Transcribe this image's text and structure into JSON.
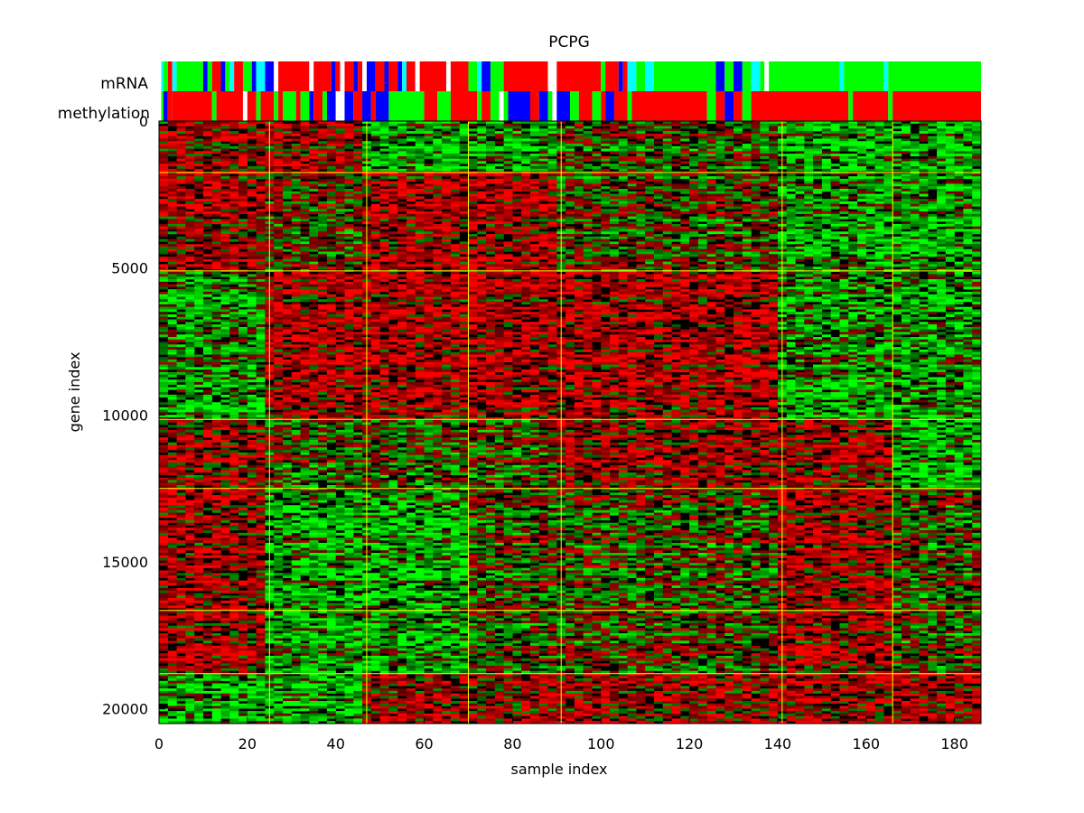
{
  "chart_data": {
    "type": "heatmap",
    "title": "PCPG",
    "xlabel": "sample index",
    "ylabel": "gene index",
    "xlim": [
      0,
      186
    ],
    "ylim": [
      20500,
      0
    ],
    "x_ticks": [
      0,
      20,
      40,
      60,
      80,
      100,
      120,
      140,
      160,
      180
    ],
    "y_ticks": [
      0,
      5000,
      10000,
      15000,
      20000
    ],
    "colormap": [
      "#00ff00",
      "#000000",
      "#ff0000"
    ],
    "grid_color": "#ffff00",
    "sample_cluster_boundaries": [
      25,
      47,
      70,
      91,
      141,
      166
    ],
    "gene_cluster_boundaries": [
      1750,
      5100,
      10150,
      12500,
      16650,
      18800
    ],
    "block_pattern": [
      [
        1,
        1,
        -1,
        -1,
        0,
        -1,
        -1
      ],
      [
        1,
        0,
        1,
        1,
        0,
        -1,
        -1
      ],
      [
        -1,
        1,
        1,
        1,
        1,
        -1,
        -1
      ],
      [
        1,
        0,
        0,
        0,
        1,
        1,
        -1
      ],
      [
        1,
        -1,
        -1,
        0,
        0,
        1,
        0
      ],
      [
        1,
        -1,
        -1,
        0,
        0,
        1,
        0
      ],
      [
        -1,
        -1,
        1,
        1,
        1,
        1,
        1
      ]
    ],
    "annotation_tracks": [
      {
        "name": "mRNA",
        "segments": [
          [
            0,
            0.5,
            "#ffffff"
          ],
          [
            0.5,
            1,
            "#00ffff"
          ],
          [
            1,
            2,
            "#00ff00"
          ],
          [
            2,
            3,
            "#ff0000"
          ],
          [
            3,
            4,
            "#00ffff"
          ],
          [
            4,
            10,
            "#00ff00"
          ],
          [
            10,
            11,
            "#0000ff"
          ],
          [
            11,
            12,
            "#00ff00"
          ],
          [
            12,
            14,
            "#ff0000"
          ],
          [
            14,
            15,
            "#0000ff"
          ],
          [
            15,
            16,
            "#00ff00"
          ],
          [
            16,
            17,
            "#00ffff"
          ],
          [
            17,
            19,
            "#ff0000"
          ],
          [
            19,
            21,
            "#00ff00"
          ],
          [
            21,
            22,
            "#0000ff"
          ],
          [
            22,
            24,
            "#00ffff"
          ],
          [
            24,
            26,
            "#0000ff"
          ],
          [
            26,
            27,
            "#ffffff"
          ],
          [
            27,
            34,
            "#ff0000"
          ],
          [
            34,
            35,
            "#ffffff"
          ],
          [
            35,
            39,
            "#ff0000"
          ],
          [
            39,
            40,
            "#0000ff"
          ],
          [
            40,
            41,
            "#ff0000"
          ],
          [
            41,
            42,
            "#ffffff"
          ],
          [
            42,
            44,
            "#ff0000"
          ],
          [
            44,
            45,
            "#0000ff"
          ],
          [
            45,
            46,
            "#ff0000"
          ],
          [
            46,
            47,
            "#ffffff"
          ],
          [
            47,
            49,
            "#0000ff"
          ],
          [
            49,
            51,
            "#ff0000"
          ],
          [
            51,
            52,
            "#0000ff"
          ],
          [
            52,
            54,
            "#ff0000"
          ],
          [
            54,
            55,
            "#0000ff"
          ],
          [
            55,
            56,
            "#00ffff"
          ],
          [
            56,
            58,
            "#ff0000"
          ],
          [
            58,
            59,
            "#ffffff"
          ],
          [
            59,
            65,
            "#ff0000"
          ],
          [
            65,
            66,
            "#ffffff"
          ],
          [
            66,
            70,
            "#ff0000"
          ],
          [
            70,
            72,
            "#00ff00"
          ],
          [
            72,
            73,
            "#00ffff"
          ],
          [
            73,
            75,
            "#0000ff"
          ],
          [
            75,
            78,
            "#00ff00"
          ],
          [
            78,
            88,
            "#ff0000"
          ],
          [
            88,
            90,
            "#ffffff"
          ],
          [
            90,
            100,
            "#ff0000"
          ],
          [
            100,
            101,
            "#00ff00"
          ],
          [
            101,
            104,
            "#ff0000"
          ],
          [
            104,
            105,
            "#0000ff"
          ],
          [
            105,
            106,
            "#ff0000"
          ],
          [
            106,
            108,
            "#00ffff"
          ],
          [
            108,
            110,
            "#00ff00"
          ],
          [
            110,
            112,
            "#00ffff"
          ],
          [
            112,
            126,
            "#00ff00"
          ],
          [
            126,
            128,
            "#0000ff"
          ],
          [
            128,
            130,
            "#00ff00"
          ],
          [
            130,
            132,
            "#0000ff"
          ],
          [
            132,
            134,
            "#00ff00"
          ],
          [
            134,
            136,
            "#00ffff"
          ],
          [
            136,
            137,
            "#00ff00"
          ],
          [
            137,
            138,
            "#ffffff"
          ],
          [
            138,
            154,
            "#00ff00"
          ],
          [
            154,
            155,
            "#00ffff"
          ],
          [
            155,
            164,
            "#00ff00"
          ],
          [
            164,
            165,
            "#00ffff"
          ],
          [
            165,
            186,
            "#00ff00"
          ]
        ]
      },
      {
        "name": "methylation",
        "segments": [
          [
            0,
            0.5,
            "#ffffff"
          ],
          [
            0.5,
            1,
            "#00ff00"
          ],
          [
            1,
            2,
            "#0000ff"
          ],
          [
            2,
            3,
            "#ff0000"
          ],
          [
            3,
            12,
            "#ff0000"
          ],
          [
            12,
            13,
            "#00ff00"
          ],
          [
            13,
            19,
            "#ff0000"
          ],
          [
            19,
            20,
            "#ffffff"
          ],
          [
            20,
            22,
            "#ff0000"
          ],
          [
            22,
            23,
            "#00ff00"
          ],
          [
            23,
            26,
            "#ff0000"
          ],
          [
            26,
            27,
            "#00ff00"
          ],
          [
            27,
            28,
            "#ff0000"
          ],
          [
            28,
            31,
            "#00ff00"
          ],
          [
            31,
            32,
            "#ff0000"
          ],
          [
            32,
            34,
            "#00ff00"
          ],
          [
            34,
            35,
            "#0000ff"
          ],
          [
            35,
            37,
            "#ff0000"
          ],
          [
            37,
            38,
            "#00ff00"
          ],
          [
            38,
            40,
            "#0000ff"
          ],
          [
            40,
            42,
            "#ffffff"
          ],
          [
            42,
            44,
            "#0000ff"
          ],
          [
            44,
            46,
            "#ff0000"
          ],
          [
            46,
            48,
            "#0000ff"
          ],
          [
            48,
            49,
            "#ff0000"
          ],
          [
            49,
            52,
            "#0000ff"
          ],
          [
            52,
            60,
            "#00ff00"
          ],
          [
            60,
            63,
            "#ff0000"
          ],
          [
            63,
            66,
            "#00ff00"
          ],
          [
            66,
            72,
            "#ff0000"
          ],
          [
            72,
            73,
            "#00ff00"
          ],
          [
            73,
            75,
            "#ff0000"
          ],
          [
            75,
            77,
            "#00ff00"
          ],
          [
            77,
            78,
            "#ffffff"
          ],
          [
            78,
            79,
            "#00ff00"
          ],
          [
            79,
            84,
            "#0000ff"
          ],
          [
            84,
            86,
            "#ff0000"
          ],
          [
            86,
            88,
            "#0000ff"
          ],
          [
            88,
            89,
            "#00ff00"
          ],
          [
            89,
            90,
            "#ffffff"
          ],
          [
            90,
            93,
            "#0000ff"
          ],
          [
            93,
            95,
            "#00ff00"
          ],
          [
            95,
            98,
            "#ff0000"
          ],
          [
            98,
            100,
            "#00ff00"
          ],
          [
            100,
            101,
            "#ff0000"
          ],
          [
            101,
            103,
            "#0000ff"
          ],
          [
            103,
            106,
            "#ff0000"
          ],
          [
            106,
            107,
            "#00ff00"
          ],
          [
            107,
            124,
            "#ff0000"
          ],
          [
            124,
            126,
            "#00ff00"
          ],
          [
            126,
            128,
            "#ff0000"
          ],
          [
            128,
            130,
            "#0000ff"
          ],
          [
            130,
            132,
            "#ff0000"
          ],
          [
            132,
            134,
            "#00ff00"
          ],
          [
            134,
            156,
            "#ff0000"
          ],
          [
            156,
            157,
            "#00ff00"
          ],
          [
            157,
            165,
            "#ff0000"
          ],
          [
            165,
            166,
            "#00ff00"
          ],
          [
            166,
            186,
            "#ff0000"
          ]
        ]
      }
    ]
  }
}
